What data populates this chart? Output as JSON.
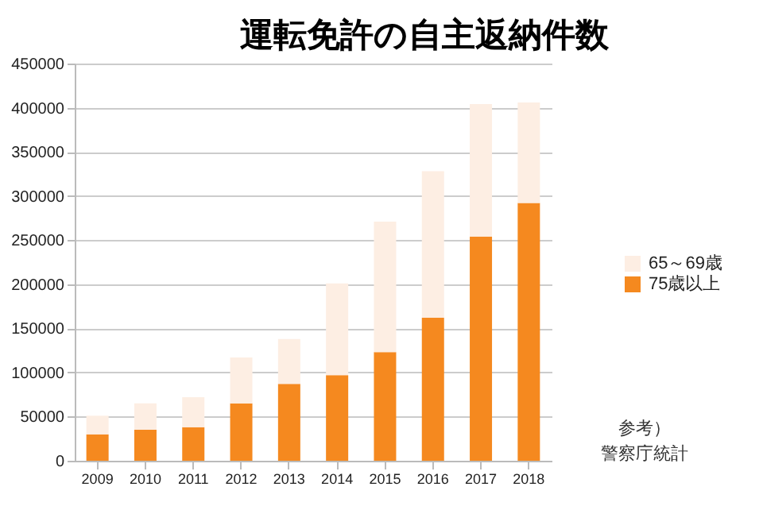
{
  "chart_data": {
    "type": "bar",
    "title": "運転免許の自主返納件数",
    "categories": [
      "2009",
      "2010",
      "2011",
      "2012",
      "2013",
      "2014",
      "2015",
      "2016",
      "2017",
      "2018"
    ],
    "series": [
      {
        "name": "75歳以上",
        "color": "#f5891f",
        "values": [
          30000,
          35000,
          38000,
          65000,
          87000,
          97000,
          123000,
          162000,
          254000,
          292000
        ]
      },
      {
        "name": "65～69歳",
        "color": "#fdeee3",
        "values": [
          21000,
          30000,
          34000,
          52000,
          51000,
          104000,
          148000,
          166000,
          150000,
          114000
        ]
      }
    ],
    "stacked": true,
    "ylim": [
      0,
      450000
    ],
    "yticks": [
      0,
      50000,
      100000,
      150000,
      200000,
      250000,
      300000,
      350000,
      400000,
      450000
    ],
    "grid": "y",
    "legend": "right",
    "annotations": [
      "参考）",
      "警察庁統計"
    ]
  }
}
